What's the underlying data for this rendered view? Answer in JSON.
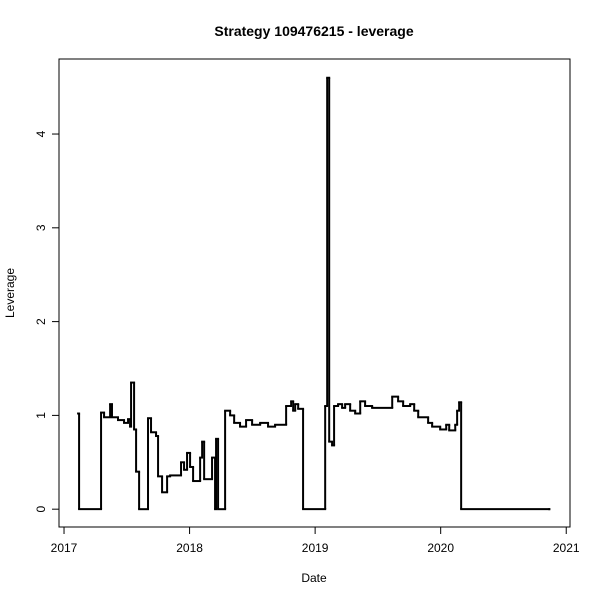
{
  "chart_data": {
    "type": "step",
    "title": "Strategy 109476215 - leverage",
    "xlabel": "Date",
    "ylabel": "Leverage",
    "color": "#000000",
    "x": [
      2017.112,
      2017.12,
      2017.295,
      2017.319,
      2017.367,
      2017.382,
      2017.43,
      2017.478,
      2017.51,
      2017.526,
      2017.534,
      2017.558,
      2017.574,
      2017.598,
      2017.669,
      2017.693,
      2017.733,
      2017.749,
      2017.781,
      2017.821,
      2017.845,
      2017.932,
      2017.956,
      2017.98,
      2018.004,
      2018.028,
      2018.084,
      2018.1,
      2018.116,
      2018.179,
      2018.203,
      2018.211,
      2018.227,
      2018.283,
      2018.323,
      2018.355,
      2018.402,
      2018.45,
      2018.498,
      2018.562,
      2018.625,
      2018.681,
      2018.769,
      2018.809,
      2018.825,
      2018.841,
      2018.865,
      2018.904,
      2019.08,
      2019.096,
      2019.112,
      2019.135,
      2019.151,
      2019.183,
      2019.215,
      2019.239,
      2019.279,
      2019.319,
      2019.359,
      2019.398,
      2019.454,
      2019.614,
      2019.661,
      2019.701,
      2019.757,
      2019.789,
      2019.821,
      2019.9,
      2019.932,
      2019.996,
      2020.044,
      2020.068,
      2020.116,
      2020.131,
      2020.147,
      2020.163,
      2020.865
    ],
    "values": [
      1.02,
      0,
      1.03,
      0.98,
      1.12,
      0.98,
      0.95,
      0.92,
      0.96,
      0.88,
      1.35,
      0.85,
      0.4,
      0,
      0.97,
      0.82,
      0.78,
      0.35,
      0.18,
      0.35,
      0.36,
      0.5,
      0.42,
      0.6,
      0.45,
      0.3,
      0.55,
      0.72,
      0.32,
      0.55,
      0,
      0.75,
      0,
      1.05,
      1.0,
      0.92,
      0.88,
      0.95,
      0.9,
      0.92,
      0.88,
      0.9,
      1.1,
      1.15,
      1.05,
      1.12,
      1.07,
      0,
      1.1,
      4.6,
      0.72,
      0.68,
      1.1,
      1.12,
      1.08,
      1.12,
      1.05,
      1.02,
      1.15,
      1.1,
      1.08,
      1.2,
      1.15,
      1.1,
      1.12,
      1.05,
      0.98,
      0.92,
      0.88,
      0.85,
      0.9,
      0.84,
      0.9,
      1.05,
      1.14,
      0,
      0
    ],
    "xlim": [
      2016.96,
      2021.03
    ],
    "ylim": [
      -0.19,
      4.8
    ],
    "xticks": [
      2017,
      2018,
      2019,
      2020,
      2021
    ],
    "yticks": [
      0,
      1,
      2,
      3,
      4
    ]
  }
}
